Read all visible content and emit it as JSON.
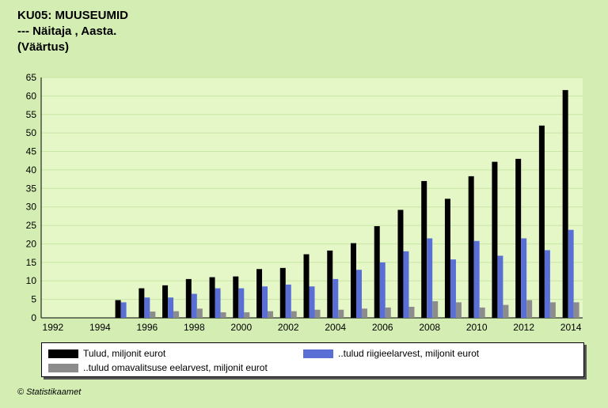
{
  "header": {
    "title": "KU05: MUUSEUMID",
    "subtitle": "--- Näitaja , Aasta.",
    "measure": "(Väärtus)"
  },
  "credit": "© Statistikaamet",
  "colors": {
    "background": "#d4edb3",
    "plot_background": "#e5f7c7",
    "grid": "#c8e6a4"
  },
  "chart_data": {
    "type": "bar",
    "title": "KU05: MUUSEUMID",
    "categories": [
      1992,
      1993,
      1994,
      1995,
      1996,
      1997,
      1998,
      1999,
      2000,
      2001,
      2002,
      2003,
      2004,
      2005,
      2006,
      2007,
      2008,
      2009,
      2010,
      2011,
      2012,
      2013,
      2014
    ],
    "x_tick_labels": [
      "1992",
      "1994",
      "1996",
      "1998",
      "2000",
      "2002",
      "2004",
      "2006",
      "2008",
      "2010",
      "2012",
      "2014"
    ],
    "ylim": [
      0,
      65
    ],
    "yticks": [
      0,
      5,
      10,
      15,
      20,
      25,
      30,
      35,
      40,
      45,
      50,
      55,
      60,
      65
    ],
    "grid": true,
    "legend_position": "bottom",
    "series": [
      {
        "name": "Tulud, miljonit eurot",
        "color": "#000000",
        "values": [
          null,
          null,
          null,
          4.8,
          8.0,
          8.8,
          10.5,
          11.0,
          11.2,
          13.2,
          13.5,
          17.2,
          18.2,
          20.2,
          24.8,
          29.2,
          37.0,
          32.2,
          38.3,
          42.2,
          43.0,
          52.0,
          61.6
        ]
      },
      {
        "name": "..tulud riigieelarvest, miljonit eurot",
        "color": "#5a6fd6",
        "values": [
          null,
          null,
          null,
          4.2,
          5.5,
          5.5,
          6.5,
          8.0,
          8.0,
          8.5,
          9.0,
          8.5,
          10.5,
          13.0,
          15.0,
          18.0,
          21.5,
          15.8,
          20.8,
          16.8,
          21.5,
          18.3,
          23.8
        ]
      },
      {
        "name": "..tulud omavalitsuse eelarvest, miljonit eurot",
        "color": "#8c8c8c",
        "values": [
          null,
          null,
          null,
          null,
          1.7,
          1.8,
          2.5,
          1.5,
          1.5,
          1.8,
          1.8,
          2.2,
          2.2,
          2.5,
          2.8,
          3.0,
          4.5,
          4.2,
          2.8,
          3.5,
          4.8,
          4.2,
          4.2
        ]
      }
    ]
  }
}
